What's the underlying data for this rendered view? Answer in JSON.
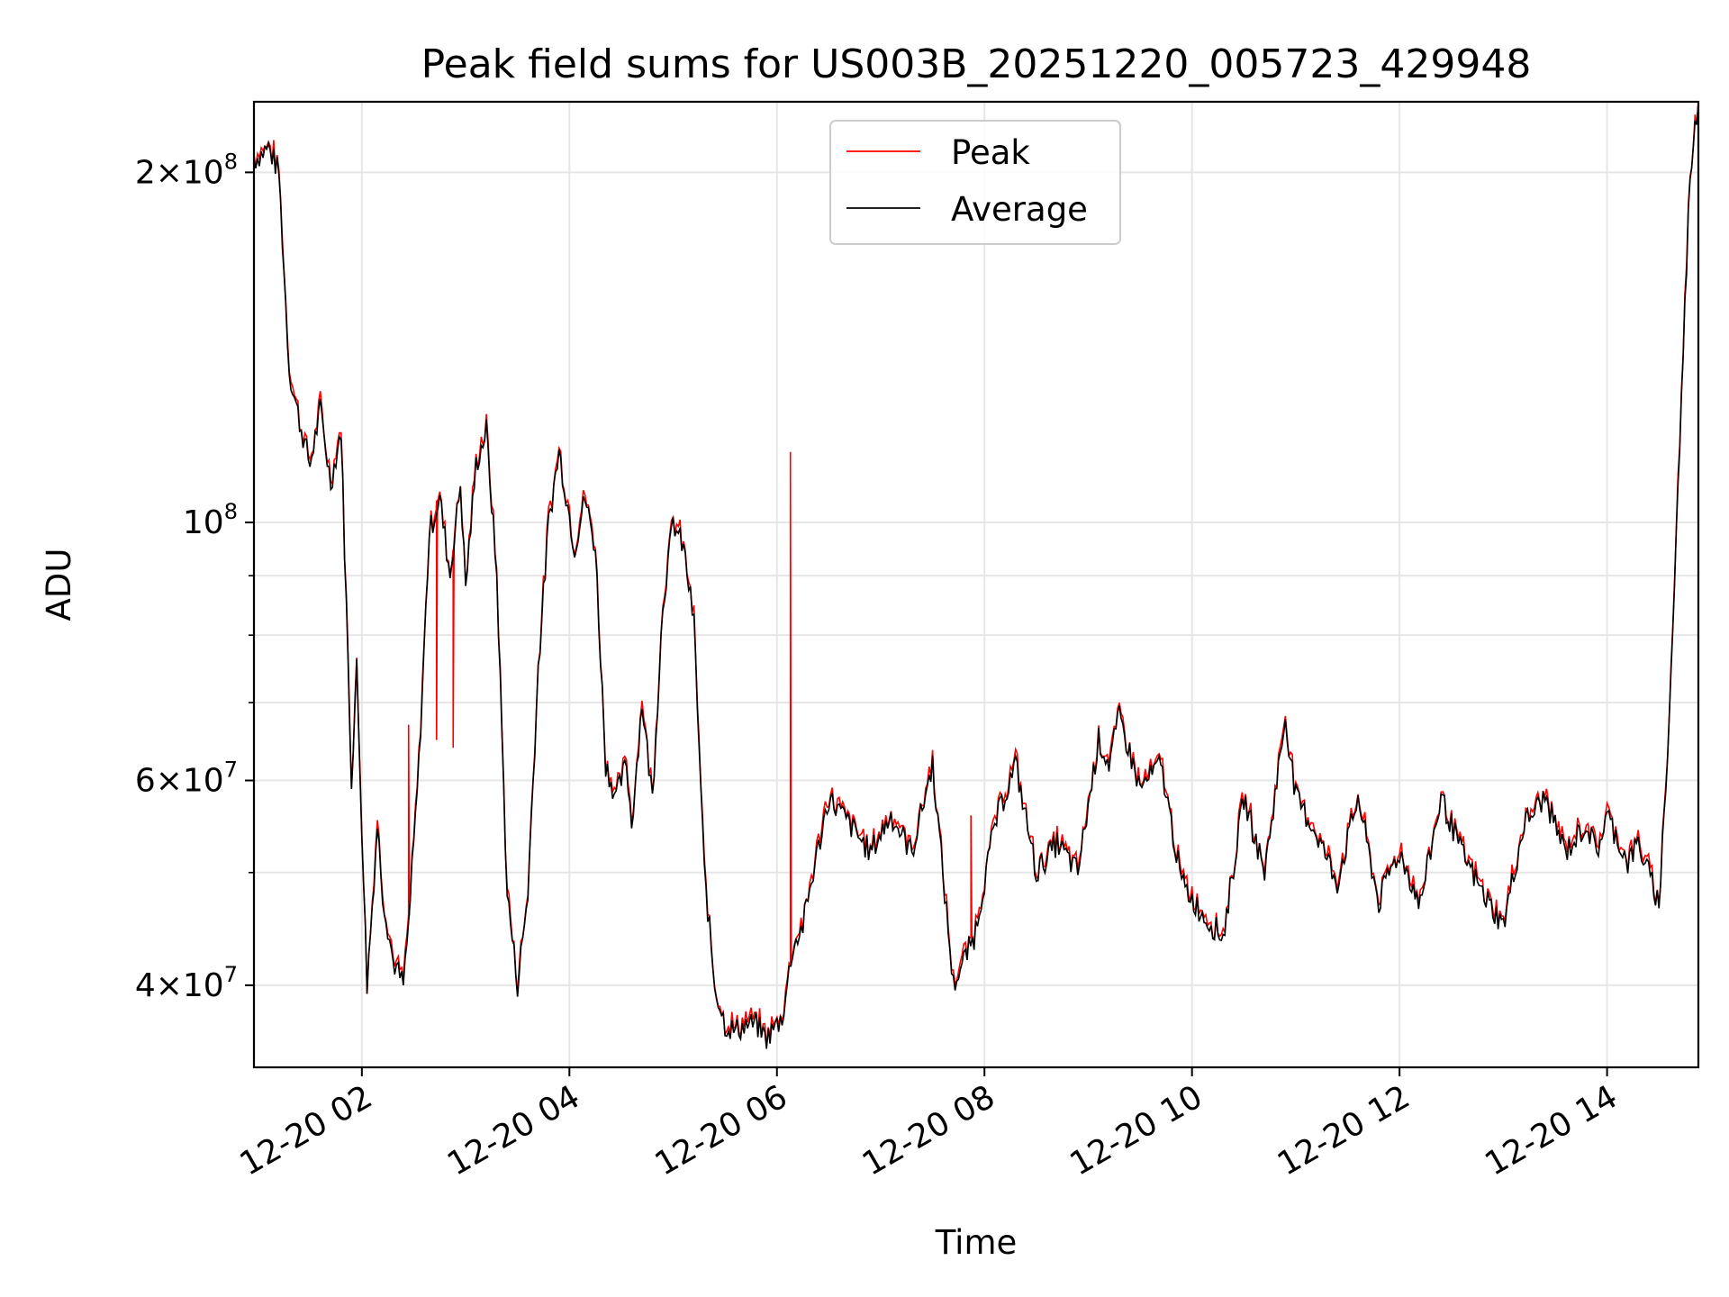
{
  "chart_data": {
    "type": "line",
    "title": "Peak field sums for US003B_20251220_005723_429948",
    "xlabel": "Time",
    "ylabel": "ADU",
    "yscale": "log",
    "ylim": [
      34000000,
      230000000
    ],
    "xlim_hours": [
      0.96,
      14.88
    ],
    "grid": true,
    "legend_position": "top-center",
    "x_ticks": [
      {
        "label": "12-20 02",
        "hour": 2
      },
      {
        "label": "12-20 04",
        "hour": 4
      },
      {
        "label": "12-20 06",
        "hour": 6
      },
      {
        "label": "12-20 08",
        "hour": 8
      },
      {
        "label": "12-20 10",
        "hour": 10
      },
      {
        "label": "12-20 12",
        "hour": 12
      },
      {
        "label": "12-20 14",
        "hour": 14
      }
    ],
    "y_ticks": [
      {
        "mantissa": "4",
        "times": "×",
        "base": "10",
        "exp": "7",
        "value": 40000000
      },
      {
        "mantissa": "6",
        "times": "×",
        "base": "10",
        "exp": "7",
        "value": 60000000
      },
      {
        "mantissa": "",
        "times": "",
        "base": "10",
        "exp": "8",
        "value": 100000000
      },
      {
        "mantissa": "2",
        "times": "×",
        "base": "10",
        "exp": "8",
        "value": 200000000
      }
    ],
    "y_minor_ticks": [
      50000000,
      70000000,
      80000000,
      90000000
    ],
    "series": [
      {
        "name": "Peak",
        "color": "#ff0000"
      },
      {
        "name": "Average",
        "color": "#000000"
      }
    ],
    "x": [
      0.96,
      1.1,
      1.2,
      1.3,
      1.4,
      1.5,
      1.6,
      1.7,
      1.8,
      1.9,
      1.95,
      2.05,
      2.15,
      2.2,
      2.3,
      2.4,
      2.45,
      2.55,
      2.65,
      2.75,
      2.85,
      2.95,
      3.0,
      3.1,
      3.2,
      3.3,
      3.4,
      3.5,
      3.6,
      3.7,
      3.8,
      3.9,
      3.95,
      4.05,
      4.15,
      4.25,
      4.35,
      4.45,
      4.55,
      4.6,
      4.7,
      4.8,
      4.9,
      5.0,
      5.1,
      5.2,
      5.3,
      5.4,
      5.5,
      5.6,
      5.7,
      5.8,
      5.9,
      6.05,
      6.1,
      6.15,
      6.25,
      6.35,
      6.5,
      6.7,
      6.9,
      7.1,
      7.3,
      7.5,
      7.7,
      7.9,
      8.1,
      8.3,
      8.5,
      8.7,
      8.9,
      9.1,
      9.2,
      9.3,
      9.5,
      9.7,
      9.9,
      10.1,
      10.3,
      10.5,
      10.7,
      10.9,
      11.0,
      11.2,
      11.4,
      11.6,
      11.8,
      11.9,
      12.0,
      12.2,
      12.4,
      12.6,
      12.8,
      13.0,
      13.2,
      13.4,
      13.6,
      13.8,
      13.9,
      14.0,
      14.2,
      14.3,
      14.5,
      14.55,
      14.6,
      14.8,
      14.88
    ],
    "average": [
      205000000,
      210000000,
      200000000,
      135000000,
      122000000,
      112000000,
      125000000,
      108000000,
      120000000,
      60000000,
      75000000,
      40000000,
      55000000,
      48000000,
      42000000,
      40000000,
      45000000,
      62000000,
      98000000,
      105000000,
      90000000,
      108000000,
      88000000,
      112000000,
      120000000,
      90000000,
      48000000,
      40000000,
      48000000,
      75000000,
      100000000,
      115000000,
      108000000,
      95000000,
      105000000,
      95000000,
      62000000,
      58000000,
      62000000,
      55000000,
      70000000,
      58000000,
      85000000,
      100000000,
      95000000,
      82000000,
      50000000,
      40000000,
      37000000,
      36500000,
      37000000,
      37000000,
      36000000,
      37500000,
      40000000,
      43000000,
      45000000,
      50000000,
      58000000,
      55000000,
      52000000,
      56000000,
      52000000,
      62000000,
      40000000,
      44000000,
      55000000,
      62000000,
      50000000,
      53000000,
      50000000,
      65000000,
      62000000,
      68000000,
      59000000,
      62000000,
      49000000,
      46000000,
      44000000,
      58000000,
      50000000,
      68000000,
      58000000,
      54000000,
      49000000,
      58000000,
      47000000,
      50000000,
      52000000,
      47000000,
      58000000,
      52000000,
      48000000,
      45000000,
      55000000,
      58000000,
      52000000,
      55000000,
      52000000,
      56000000,
      51000000,
      53000000,
      47000000,
      56000000,
      68000000,
      200000000,
      230000000
    ],
    "peak_spikes": [
      {
        "hour": 2.45,
        "value": 67000000
      },
      {
        "hour": 2.72,
        "value": 65000000
      },
      {
        "hour": 2.88,
        "value": 64000000
      },
      {
        "hour": 6.13,
        "value": 115000000
      },
      {
        "hour": 7.87,
        "value": 56000000
      }
    ]
  }
}
